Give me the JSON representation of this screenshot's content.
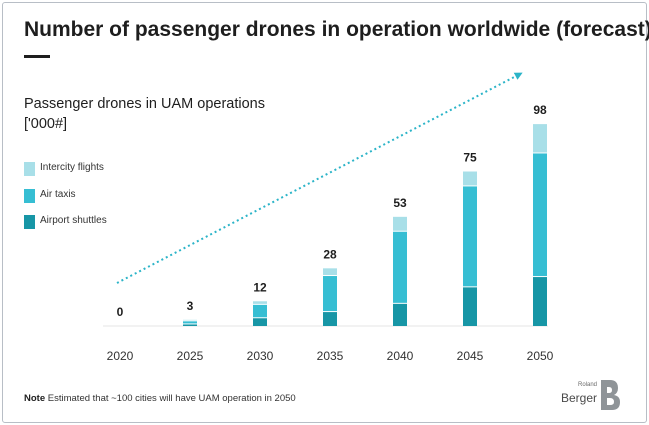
{
  "title": "Number of passenger drones in operation worldwide (forecast)",
  "subtitle_line1": "Passenger drones in UAM operations",
  "subtitle_line2": "['000#]",
  "note_label": "Note",
  "note_text": "Estimated that ~100 cities will have UAM operation in 2050",
  "brand_small": "Roland",
  "brand_name": "Berger",
  "colors": {
    "intercity": "#a8dfe8",
    "air_taxis": "#36bed3",
    "airport_shuttles": "#1796a6",
    "trend_arrow": "#2bb4c8"
  },
  "chart_data": {
    "type": "bar",
    "stacked": true,
    "title": "Number of passenger drones in operation worldwide (forecast)",
    "ylabel": "Passenger drones in UAM operations ['000#]",
    "xlabel": "",
    "categories": [
      "2020",
      "2025",
      "2030",
      "2035",
      "2040",
      "2045",
      "2050"
    ],
    "totals": [
      0,
      3,
      12,
      28,
      53,
      75,
      98
    ],
    "series": [
      {
        "name": "Airport shuttles",
        "color": "#1796a6",
        "values": [
          0,
          1,
          4,
          7,
          11,
          19,
          24
        ]
      },
      {
        "name": "Air taxis",
        "color": "#36bed3",
        "values": [
          0,
          1.5,
          6.5,
          17.5,
          35,
          49,
          60
        ]
      },
      {
        "name": "Intercity flights",
        "color": "#a8dfe8",
        "values": [
          0,
          0.5,
          1.5,
          3.5,
          7,
          7,
          14
        ]
      }
    ],
    "legend_order": [
      "Intercity flights",
      "Air taxis",
      "Airport shuttles"
    ],
    "legend_position": "left",
    "ylim": [
      0,
      100
    ],
    "grid": false
  }
}
